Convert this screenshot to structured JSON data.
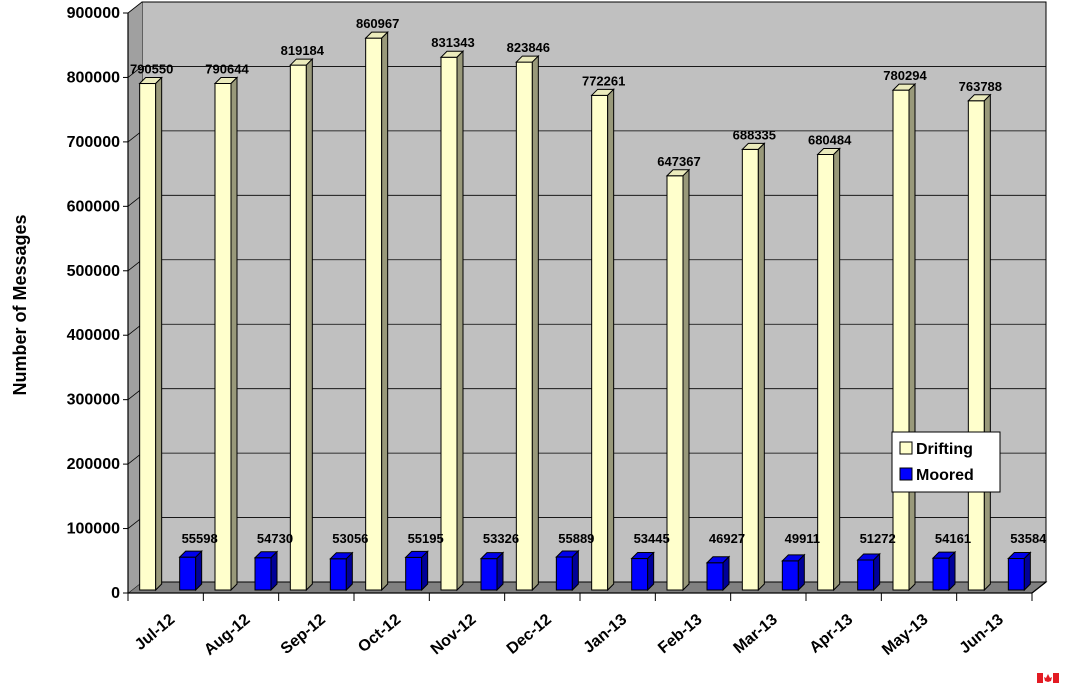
{
  "chart_data": {
    "type": "bar",
    "categories": [
      "Jul-12",
      "Aug-12",
      "Sep-12",
      "Oct-12",
      "Nov-12",
      "Dec-12",
      "Jan-13",
      "Feb-13",
      "Mar-13",
      "Apr-13",
      "May-13",
      "Jun-13"
    ],
    "series": [
      {
        "name": "Drifting",
        "values": [
          790550,
          790644,
          819184,
          860967,
          831343,
          823846,
          772261,
          647367,
          688335,
          680484,
          780294,
          763788
        ],
        "color": "#ffffcc"
      },
      {
        "name": "Moored",
        "values": [
          55598,
          54730,
          53056,
          55195,
          53326,
          55889,
          53445,
          46927,
          49911,
          51272,
          54161,
          53584
        ],
        "color": "#0000ff"
      }
    ],
    "ylabel": "Number of Messages",
    "ylim": [
      0,
      900000
    ],
    "yticks": [
      "0",
      "100000",
      "200000",
      "300000",
      "400000",
      "500000",
      "600000",
      "700000",
      "800000",
      "900000"
    ],
    "grid": true,
    "legend_position": "right"
  },
  "colors": {
    "plot_wall": "#c0c0c0",
    "floor": "#808080",
    "gridline": "#000000",
    "flag_red": "#e31b23"
  },
  "icons": {
    "corner_logo": "canada-flag-icon"
  }
}
